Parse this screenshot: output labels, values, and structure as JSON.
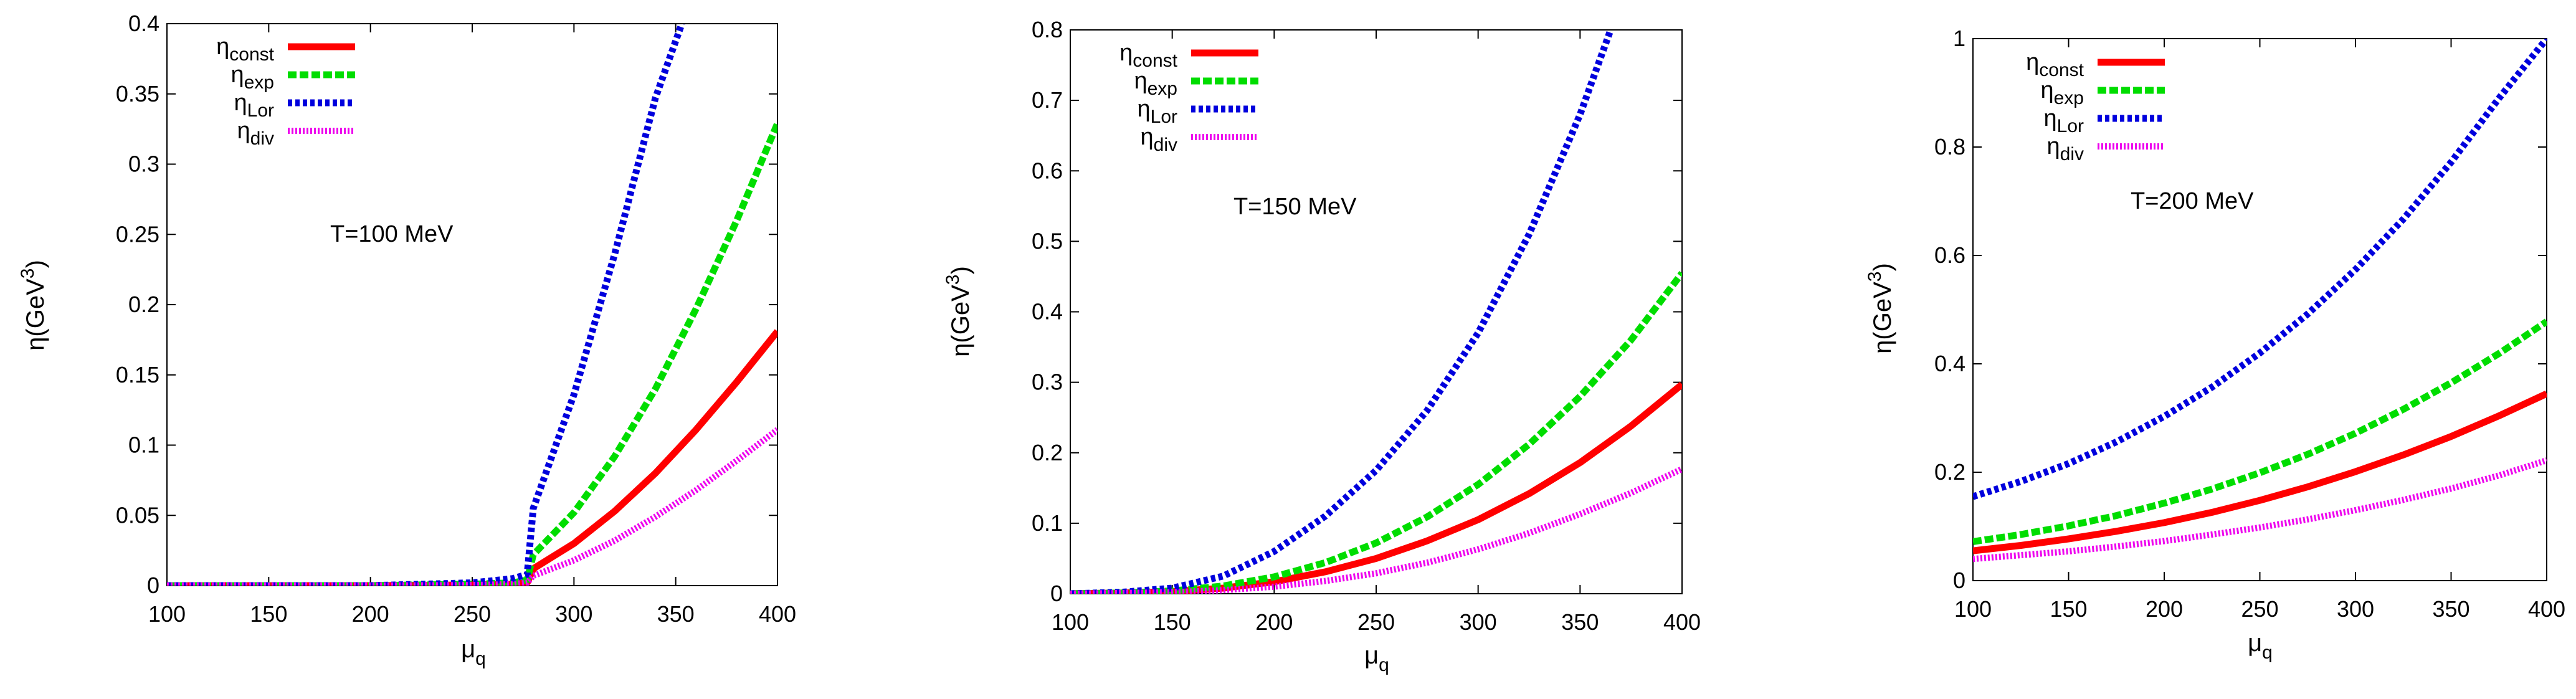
{
  "chart_data": [
    {
      "type": "line",
      "title": "T=100 MeV",
      "xlabel": "μ",
      "xlabel_sub": "q",
      "ylabel": "η(GeV",
      "ylabel_sup": "3",
      "ylabel_close": ")",
      "xlim": [
        100,
        400
      ],
      "ylim": [
        0,
        0.4
      ],
      "xticks": [
        100,
        150,
        200,
        250,
        300,
        350,
        400
      ],
      "yticks": [
        0,
        0.05,
        0.1,
        0.15,
        0.2,
        0.25,
        0.3,
        0.35,
        0.4
      ],
      "ytick_labels": [
        "0",
        "0.05",
        "0.1",
        "0.15",
        "0.2",
        "0.25",
        "0.3",
        "0.35",
        "0.4"
      ],
      "legend_position": "top-left",
      "series": [
        {
          "name": "η",
          "sub": "const",
          "color": "#ff0000",
          "dash": "solid",
          "x": [
            100,
            150,
            200,
            250,
            270,
            277,
            280,
            300,
            320,
            340,
            360,
            380,
            400
          ],
          "y": [
            0,
            0,
            0,
            0.0005,
            0.001,
            0.002,
            0.012,
            0.03,
            0.053,
            0.08,
            0.111,
            0.145,
            0.181
          ]
        },
        {
          "name": "η",
          "sub": "exp",
          "color": "#00dd00",
          "dash": "dash",
          "x": [
            100,
            150,
            200,
            250,
            270,
            277,
            280,
            300,
            320,
            340,
            360,
            380,
            400
          ],
          "y": [
            0,
            0,
            0,
            0.001,
            0.002,
            0.004,
            0.022,
            0.052,
            0.092,
            0.14,
            0.197,
            0.26,
            0.329
          ]
        },
        {
          "name": "η",
          "sub": "Lor",
          "color": "#0000dd",
          "dash": "dot",
          "x": [
            100,
            150,
            200,
            250,
            270,
            277,
            280,
            300,
            320,
            340,
            353
          ],
          "y": [
            0,
            0,
            0,
            0.002,
            0.005,
            0.008,
            0.055,
            0.136,
            0.236,
            0.347,
            0.4
          ]
        },
        {
          "name": "η",
          "sub": "div",
          "color": "#ee00ee",
          "dash": "finedot",
          "x": [
            100,
            150,
            200,
            250,
            270,
            277,
            280,
            300,
            320,
            340,
            360,
            380,
            400
          ],
          "y": [
            0,
            0,
            0,
            0.0004,
            0.001,
            0.002,
            0.007,
            0.018,
            0.032,
            0.049,
            0.068,
            0.089,
            0.111
          ]
        }
      ]
    },
    {
      "type": "line",
      "title": "T=150 MeV",
      "xlabel": "μ",
      "xlabel_sub": "q",
      "ylabel": "η(GeV",
      "ylabel_sup": "3",
      "ylabel_close": ")",
      "xlim": [
        100,
        400
      ],
      "ylim": [
        0,
        0.8
      ],
      "xticks": [
        100,
        150,
        200,
        250,
        300,
        350,
        400
      ],
      "yticks": [
        0,
        0.1,
        0.2,
        0.3,
        0.4,
        0.5,
        0.6,
        0.7,
        0.8
      ],
      "ytick_labels": [
        "0",
        "0.1",
        "0.2",
        "0.3",
        "0.4",
        "0.5",
        "0.6",
        "0.7",
        "0.8"
      ],
      "legend_position": "top-left",
      "series": [
        {
          "name": "η",
          "sub": "const",
          "color": "#ff0000",
          "dash": "solid",
          "x": [
            100,
            125,
            150,
            175,
            200,
            225,
            250,
            275,
            300,
            325,
            350,
            375,
            400
          ],
          "y": [
            0,
            0.001,
            0.003,
            0.008,
            0.017,
            0.031,
            0.05,
            0.075,
            0.105,
            0.142,
            0.186,
            0.238,
            0.297
          ]
        },
        {
          "name": "η",
          "sub": "exp",
          "color": "#00dd00",
          "dash": "dash",
          "x": [
            100,
            125,
            150,
            175,
            200,
            225,
            250,
            275,
            300,
            325,
            350,
            375,
            400
          ],
          "y": [
            0,
            0.001,
            0.004,
            0.011,
            0.024,
            0.044,
            0.072,
            0.109,
            0.155,
            0.212,
            0.28,
            0.36,
            0.455
          ]
        },
        {
          "name": "η",
          "sub": "Lor",
          "color": "#0000dd",
          "dash": "dot",
          "x": [
            100,
            125,
            150,
            175,
            200,
            225,
            250,
            275,
            300,
            325,
            350,
            365
          ],
          "y": [
            0,
            0.002,
            0.008,
            0.025,
            0.06,
            0.11,
            0.175,
            0.26,
            0.37,
            0.51,
            0.68,
            0.8
          ]
        },
        {
          "name": "η",
          "sub": "div",
          "color": "#ee00ee",
          "dash": "finedot",
          "x": [
            100,
            125,
            150,
            175,
            200,
            225,
            250,
            275,
            300,
            325,
            350,
            375,
            400
          ],
          "y": [
            0,
            0.001,
            0.002,
            0.005,
            0.01,
            0.018,
            0.029,
            0.044,
            0.063,
            0.086,
            0.113,
            0.143,
            0.177
          ]
        }
      ]
    },
    {
      "type": "line",
      "title": "T=200 MeV",
      "xlabel": "μ",
      "xlabel_sub": "q",
      "ylabel": "η(GeV",
      "ylabel_sup": "3",
      "ylabel_close": ")",
      "xlim": [
        100,
        400
      ],
      "ylim": [
        0,
        1
      ],
      "xticks": [
        100,
        150,
        200,
        250,
        300,
        350,
        400
      ],
      "yticks": [
        0,
        0.2,
        0.4,
        0.6,
        0.8,
        1
      ],
      "ytick_labels": [
        "0",
        "0.2",
        "0.4",
        "0.6",
        "0.8",
        "1"
      ],
      "legend_position": "top-left",
      "series": [
        {
          "name": "η",
          "sub": "const",
          "color": "#ff0000",
          "dash": "solid",
          "x": [
            100,
            125,
            150,
            175,
            200,
            225,
            250,
            275,
            300,
            325,
            350,
            375,
            400
          ],
          "y": [
            0.055,
            0.065,
            0.077,
            0.091,
            0.107,
            0.126,
            0.148,
            0.173,
            0.201,
            0.232,
            0.266,
            0.304,
            0.345
          ]
        },
        {
          "name": "η",
          "sub": "exp",
          "color": "#00dd00",
          "dash": "dash",
          "x": [
            100,
            125,
            150,
            175,
            200,
            225,
            250,
            275,
            300,
            325,
            350,
            375,
            400
          ],
          "y": [
            0.072,
            0.085,
            0.101,
            0.12,
            0.143,
            0.169,
            0.199,
            0.233,
            0.272,
            0.316,
            0.365,
            0.419,
            0.478
          ]
        },
        {
          "name": "η",
          "sub": "Lor",
          "color": "#0000dd",
          "dash": "dot",
          "x": [
            100,
            125,
            150,
            175,
            200,
            225,
            250,
            275,
            300,
            325,
            350,
            375,
            400
          ],
          "y": [
            0.155,
            0.183,
            0.216,
            0.256,
            0.303,
            0.357,
            0.42,
            0.492,
            0.574,
            0.667,
            0.772,
            0.89,
            1.0
          ]
        },
        {
          "name": "η",
          "sub": "div",
          "color": "#ee00ee",
          "dash": "finedot",
          "x": [
            100,
            125,
            150,
            175,
            200,
            225,
            250,
            275,
            300,
            325,
            350,
            375,
            400
          ],
          "y": [
            0.04,
            0.047,
            0.054,
            0.063,
            0.073,
            0.085,
            0.098,
            0.113,
            0.13,
            0.149,
            0.17,
            0.194,
            0.222
          ]
        }
      ]
    }
  ]
}
